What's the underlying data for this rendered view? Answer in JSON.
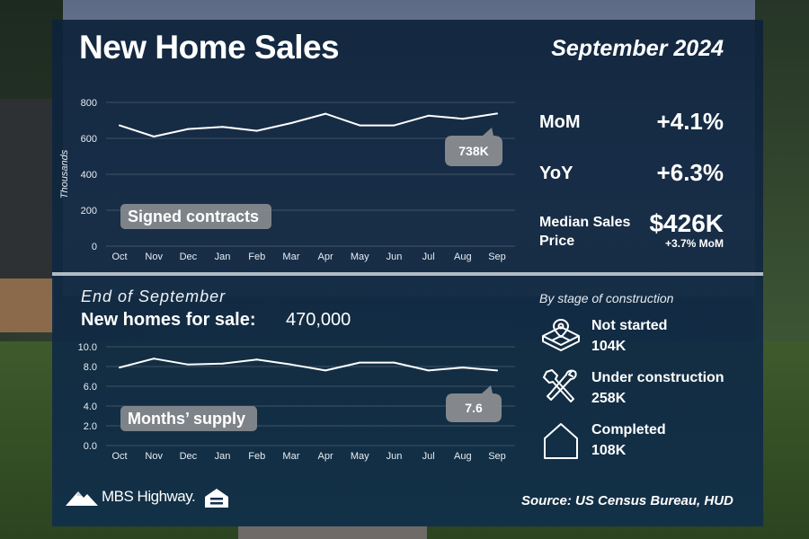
{
  "header": {
    "title": "New Home Sales",
    "period": "September 2024"
  },
  "stats": {
    "mom_label": "MoM",
    "mom_value": "+4.1%",
    "yoy_label": "YoY",
    "yoy_value": "+6.3%",
    "price_label": "Median Sales Price",
    "price_value": "$426K",
    "price_sub": "+3.7% MoM"
  },
  "inventory": {
    "heading": "End of September",
    "for_sale_label": "New homes for sale:",
    "for_sale_value": "470,000"
  },
  "stages": {
    "heading": "By stage of construction",
    "items": [
      {
        "title": "Not started",
        "value": "104K",
        "icon": "lot-pin-icon"
      },
      {
        "title": "Under construction",
        "value": "258K",
        "icon": "tools-icon"
      },
      {
        "title": "Completed",
        "value": "108K",
        "icon": "house-icon"
      }
    ]
  },
  "footer": {
    "brand": "MBS Highway.",
    "source": "Source: US Census Bureau, HUD"
  },
  "chart_data": [
    {
      "type": "line",
      "categories": [
        "Oct",
        "Nov",
        "Dec",
        "Jan",
        "Feb",
        "Mar",
        "Apr",
        "May",
        "Jun",
        "Jul",
        "Aug",
        "Sep"
      ],
      "values": [
        672,
        610,
        652,
        664,
        642,
        685,
        737,
        672,
        672,
        726,
        709,
        738
      ],
      "ylabel": "Thousands",
      "ylim": [
        0,
        800
      ],
      "yticks": [
        "0",
        "200",
        "400",
        "600",
        "800"
      ],
      "label": "Signed contracts",
      "callout": "738K",
      "grid": true,
      "line_color": "#ffffff"
    },
    {
      "type": "line",
      "categories": [
        "Oct",
        "Nov",
        "Dec",
        "Jan",
        "Feb",
        "Mar",
        "Apr",
        "May",
        "Jun",
        "Jul",
        "Aug",
        "Sep"
      ],
      "values": [
        7.9,
        8.8,
        8.2,
        8.3,
        8.7,
        8.2,
        7.6,
        8.4,
        8.4,
        7.6,
        7.9,
        7.6
      ],
      "ylim": [
        0,
        10
      ],
      "yticks": [
        "0.0",
        "2.0",
        "4.0",
        "6.0",
        "8.0",
        "10.0"
      ],
      "label": "Months’ supply",
      "callout": "7.6",
      "grid": true,
      "line_color": "#ffffff"
    }
  ]
}
